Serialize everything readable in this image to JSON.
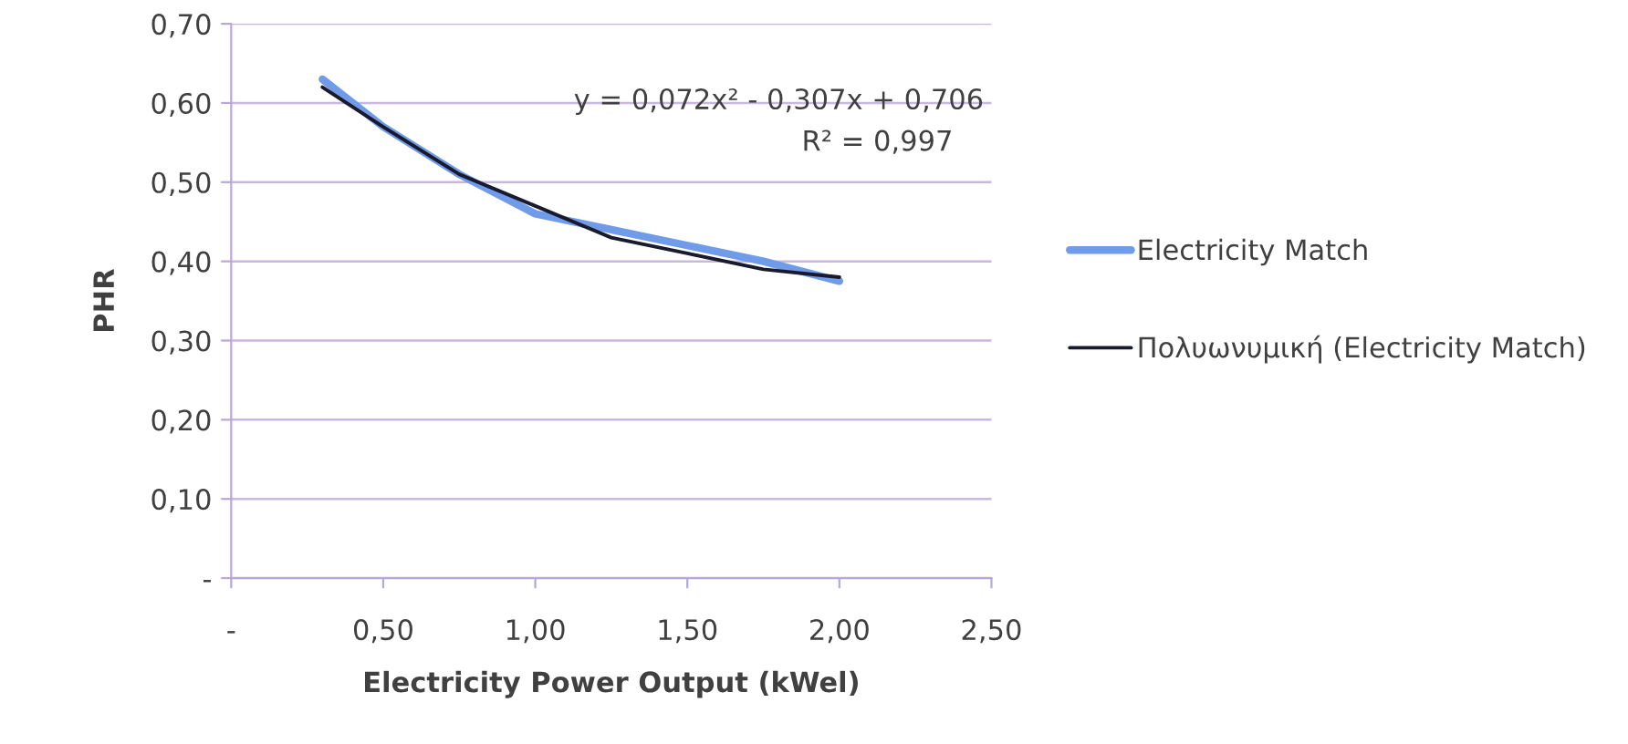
{
  "chart_data": {
    "type": "line",
    "xlabel": "Electricity Power Output (kWel)",
    "ylabel": "PHR",
    "xlim": [
      0,
      2.5
    ],
    "ylim": [
      0,
      0.7
    ],
    "xticks": [
      {
        "value": 0,
        "label": "-"
      },
      {
        "value": 0.5,
        "label": "0,50"
      },
      {
        "value": 1,
        "label": "1,00"
      },
      {
        "value": 1.5,
        "label": "1,50"
      },
      {
        "value": 2,
        "label": "2,00"
      },
      {
        "value": 2.5,
        "label": "2,50"
      }
    ],
    "yticks": [
      {
        "value": 0,
        "label": "-"
      },
      {
        "value": 0.1,
        "label": "0,10"
      },
      {
        "value": 0.2,
        "label": "0,20"
      },
      {
        "value": 0.3,
        "label": "0,30"
      },
      {
        "value": 0.4,
        "label": "0,40"
      },
      {
        "value": 0.5,
        "label": "0,50"
      },
      {
        "value": 0.6,
        "label": "0,60"
      },
      {
        "value": 0.7,
        "label": "0,70"
      }
    ],
    "grid": "y",
    "legend": "right",
    "marker": "none",
    "line_style": "solid",
    "series": [
      {
        "name": "Electricity Match",
        "color": "#6f9be8",
        "x": [
          0.3,
          0.5,
          0.75,
          1.0,
          1.25,
          1.5,
          1.75,
          2.0
        ],
        "values": [
          0.63,
          0.57,
          0.51,
          0.46,
          0.44,
          0.42,
          0.4,
          0.375
        ]
      },
      {
        "name": "Πολυωνυμική (Electricity Match)",
        "color": "#1a1a2e",
        "x": [
          0.3,
          0.5,
          0.75,
          1.0,
          1.25,
          1.5,
          1.75,
          2.0
        ],
        "values": [
          0.62,
          0.57,
          0.51,
          0.47,
          0.43,
          0.41,
          0.39,
          0.38
        ]
      }
    ],
    "annotations": [
      "y = 0,072x² - 0,307x + 0,706",
      "R² = 0,997"
    ]
  }
}
